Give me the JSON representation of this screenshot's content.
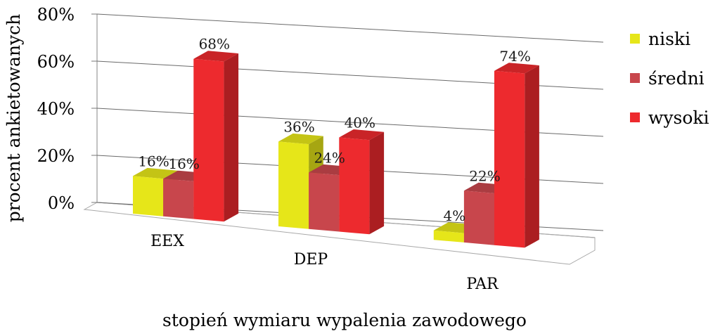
{
  "chart_data": {
    "type": "bar",
    "categories": [
      "EEX",
      "DEP",
      "PAR"
    ],
    "series": [
      {
        "name": "niski",
        "values": [
          16,
          36,
          4
        ],
        "color": "#e6e619"
      },
      {
        "name": "średni",
        "values": [
          16,
          24,
          22
        ],
        "color": "#c8464c"
      },
      {
        "name": "wysoki",
        "values": [
          68,
          40,
          74
        ],
        "color": "#ed2a2e"
      }
    ],
    "value_labels": [
      [
        "16%",
        "36%",
        "4%"
      ],
      [
        "16%",
        "24%",
        "22%"
      ],
      [
        "68%",
        "40%",
        "74%"
      ]
    ],
    "ylim": [
      0,
      80
    ],
    "yticks": [
      0,
      20,
      40,
      60,
      80
    ],
    "ytick_labels": [
      "0%",
      "20%",
      "40%",
      "60%",
      "80%"
    ],
    "xlabel": "stopień wymiaru wypalenia zawodowego",
    "ylabel": "procent ankietowanych",
    "grid": true,
    "legend": "right",
    "style": "3d-clustered"
  }
}
